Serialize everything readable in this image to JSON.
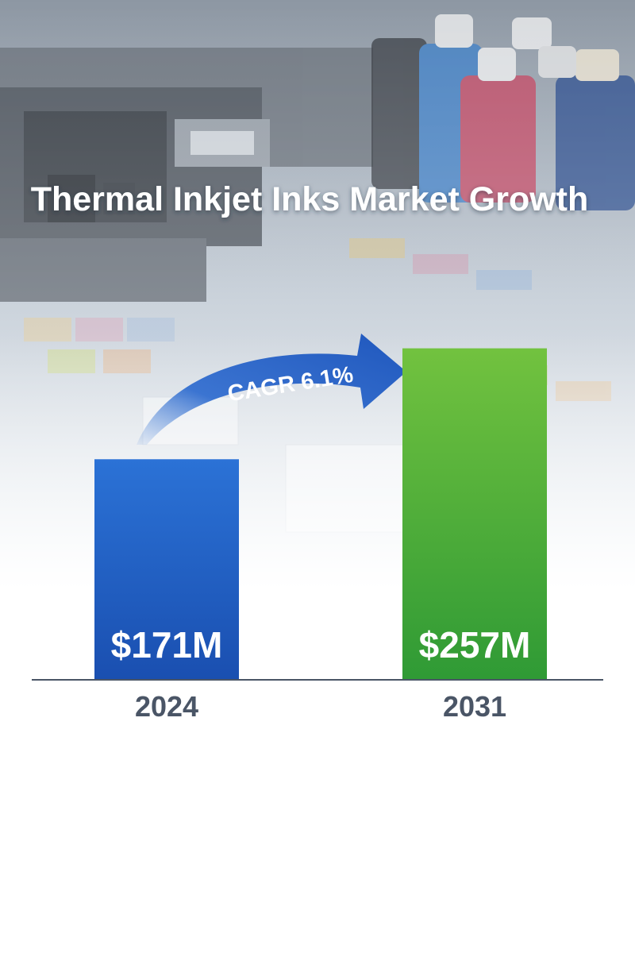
{
  "chart_data": {
    "type": "bar",
    "title": "Thermal Inkjet Inks Market Growth",
    "categories": [
      "2024",
      "2031"
    ],
    "values": [
      171,
      257
    ],
    "value_labels": [
      "$171M",
      "$257M"
    ],
    "ylim": [
      0,
      290
    ],
    "grid": false,
    "legend": "none",
    "annotation": "CAGR 6.1%"
  },
  "colors": {
    "bar_2024": "#1f5fc8",
    "bar_2031": "#4fb03a",
    "arrow": "#2a63c6",
    "tick_text": "#4a5566",
    "baseline": "#4a5566",
    "title_text": "#ffffff"
  },
  "icons": {
    "background": "printer-and-ink-bottles-photo"
  }
}
